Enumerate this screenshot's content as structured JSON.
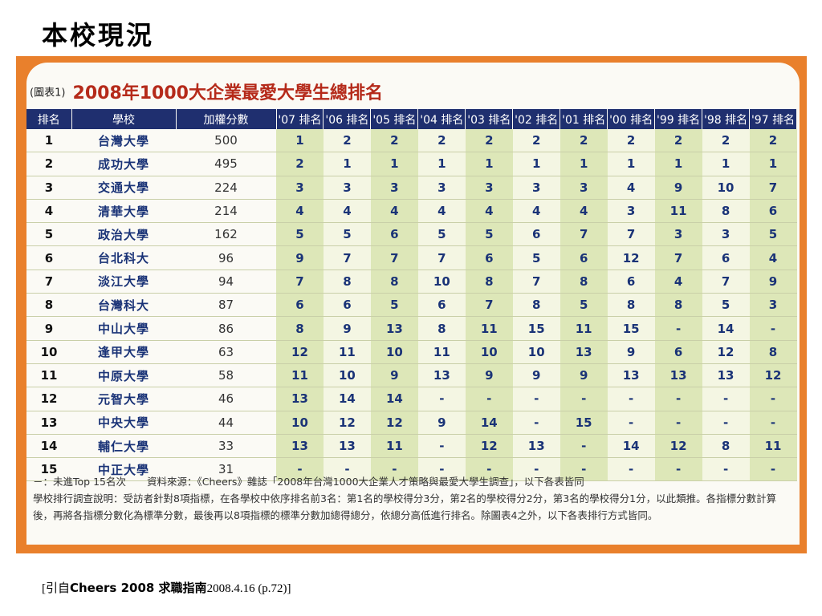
{
  "slide_title": "本校現況",
  "chart": {
    "tag": "(圖表1)",
    "title": "2008年1000大企業最愛大學生總排名"
  },
  "table": {
    "headers": [
      "排名",
      "學校",
      "加權分數",
      "'07 排名",
      "'06 排名",
      "'05 排名",
      "'04 排名",
      "'03 排名",
      "'02 排名",
      "'01 排名",
      "'00 排名",
      "'99 排名",
      "'98 排名",
      "'97 排名"
    ],
    "rows": [
      {
        "rank": "1",
        "school": "台灣大學",
        "score": "500",
        "years": [
          "1",
          "2",
          "2",
          "2",
          "2",
          "2",
          "2",
          "2",
          "2",
          "2",
          "2"
        ]
      },
      {
        "rank": "2",
        "school": "成功大學",
        "score": "495",
        "years": [
          "2",
          "1",
          "1",
          "1",
          "1",
          "1",
          "1",
          "1",
          "1",
          "1",
          "1"
        ]
      },
      {
        "rank": "3",
        "school": "交通大學",
        "score": "224",
        "years": [
          "3",
          "3",
          "3",
          "3",
          "3",
          "3",
          "3",
          "4",
          "9",
          "10",
          "7"
        ]
      },
      {
        "rank": "4",
        "school": "清華大學",
        "score": "214",
        "years": [
          "4",
          "4",
          "4",
          "4",
          "4",
          "4",
          "4",
          "3",
          "11",
          "8",
          "6"
        ]
      },
      {
        "rank": "5",
        "school": "政治大學",
        "score": "162",
        "years": [
          "5",
          "5",
          "6",
          "5",
          "5",
          "6",
          "7",
          "7",
          "3",
          "3",
          "5"
        ]
      },
      {
        "rank": "6",
        "school": "台北科大",
        "score": "96",
        "years": [
          "9",
          "7",
          "7",
          "7",
          "6",
          "5",
          "6",
          "12",
          "7",
          "6",
          "4"
        ]
      },
      {
        "rank": "7",
        "school": "淡江大學",
        "score": "94",
        "years": [
          "7",
          "8",
          "8",
          "10",
          "8",
          "7",
          "8",
          "6",
          "4",
          "7",
          "9"
        ]
      },
      {
        "rank": "8",
        "school": "台灣科大",
        "score": "87",
        "years": [
          "6",
          "6",
          "5",
          "6",
          "7",
          "8",
          "5",
          "8",
          "8",
          "5",
          "3"
        ]
      },
      {
        "rank": "9",
        "school": "中山大學",
        "score": "86",
        "years": [
          "8",
          "9",
          "13",
          "8",
          "11",
          "15",
          "11",
          "15",
          "-",
          "14",
          "-"
        ]
      },
      {
        "rank": "10",
        "school": "逢甲大學",
        "score": "63",
        "years": [
          "12",
          "11",
          "10",
          "11",
          "10",
          "10",
          "13",
          "9",
          "6",
          "12",
          "8"
        ]
      },
      {
        "rank": "11",
        "school": "中原大學",
        "score": "58",
        "years": [
          "11",
          "10",
          "9",
          "13",
          "9",
          "9",
          "9",
          "13",
          "13",
          "13",
          "12"
        ]
      },
      {
        "rank": "12",
        "school": "元智大學",
        "score": "46",
        "years": [
          "13",
          "14",
          "14",
          "-",
          "-",
          "-",
          "-",
          "-",
          "-",
          "-",
          "-"
        ]
      },
      {
        "rank": "13",
        "school": "中央大學",
        "score": "44",
        "years": [
          "10",
          "12",
          "12",
          "9",
          "14",
          "-",
          "15",
          "-",
          "-",
          "-",
          "-"
        ]
      },
      {
        "rank": "14",
        "school": "輔仁大學",
        "score": "33",
        "years": [
          "13",
          "13",
          "11",
          "-",
          "12",
          "13",
          "-",
          "14",
          "12",
          "8",
          "11"
        ]
      },
      {
        "rank": "15",
        "school": "中正大學",
        "score": "31",
        "years": [
          "-",
          "-",
          "-",
          "-",
          "-",
          "-",
          "-",
          "-",
          "-",
          "-",
          "-"
        ]
      }
    ]
  },
  "notes": {
    "legend": "－：未進Top 15名次",
    "source": "資料來源：《Cheers》雜誌「2008年台灣1000大企業人才策略與最愛大學生調查」，以下各表皆同",
    "method": "學校排行調查說明：受訪者針對8項指標，在各學校中依序排名前3名：第1名的學校得分3分，第2名的學校得分2分，第3名的學校得分1分，以此類推。各指標分數計算後，再將各指標分數化為標準分數，最後再以8項指標的標準分數加總得總分，依總分高低進行排名。除圖表4之外，以下各表排行方式皆同。"
  },
  "caption": {
    "prefix": "[引自",
    "source": "Cheers 2008 求職指南",
    "suffix": "2008.4.16 (p.72)]"
  },
  "colors": {
    "frame": "#e9802c",
    "header_bg": "#1f2f6f",
    "title_red": "#b52a1a",
    "row_green": "#dde7b8",
    "school_blue": "#1a3377"
  }
}
